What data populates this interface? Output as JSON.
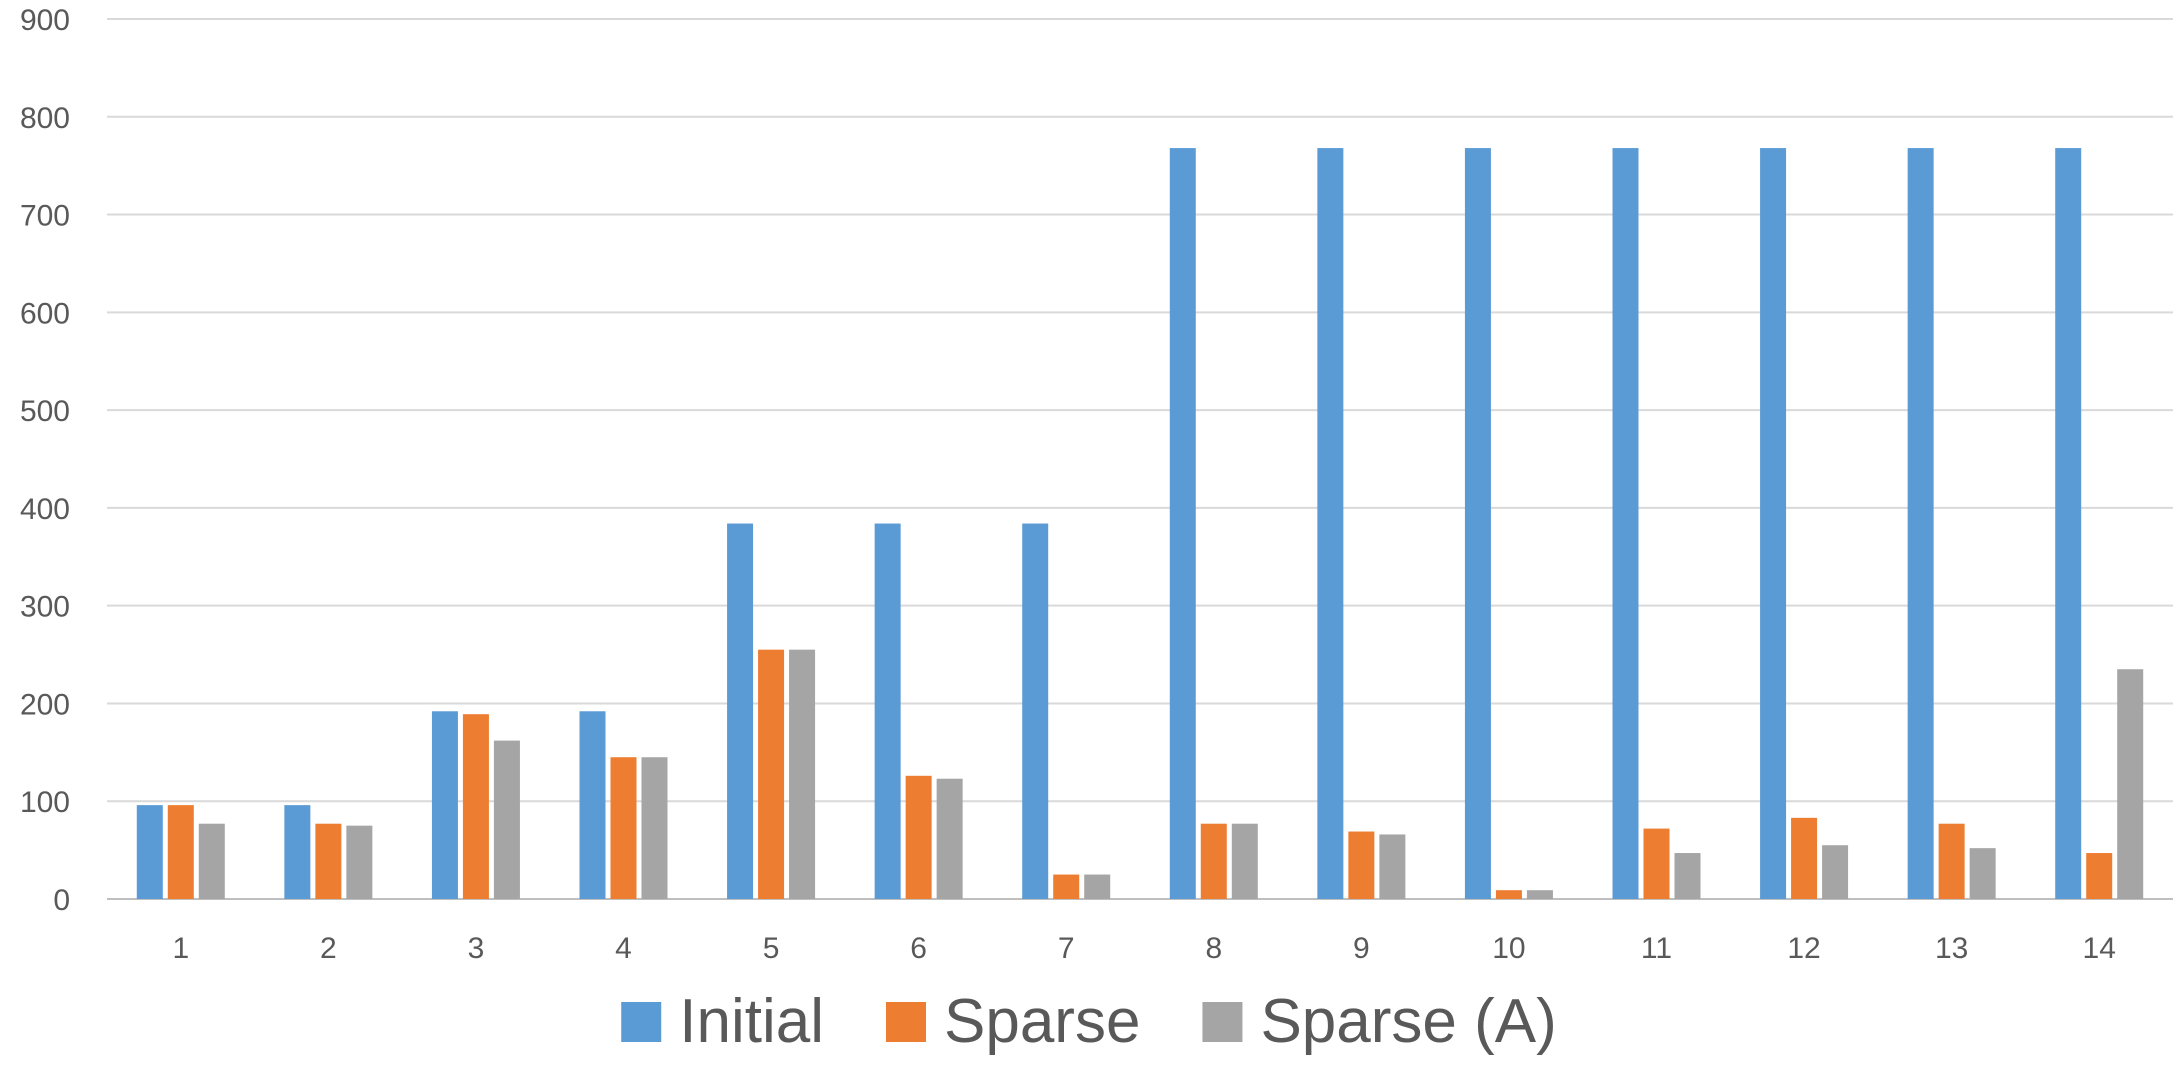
{
  "chart_data": {
    "type": "bar",
    "title": "",
    "xlabel": "",
    "ylabel": "",
    "categories": [
      "1",
      "2",
      "3",
      "4",
      "5",
      "6",
      "7",
      "8",
      "9",
      "10",
      "11",
      "12",
      "13",
      "14"
    ],
    "ylim": [
      0,
      900
    ],
    "yticks": [
      0,
      100,
      200,
      300,
      400,
      500,
      600,
      700,
      800,
      900
    ],
    "grid": true,
    "legend_position": "bottom",
    "series": [
      {
        "name": "Initial",
        "color": "#5B9BD5",
        "values": [
          96,
          96,
          192,
          192,
          384,
          384,
          384,
          768,
          768,
          768,
          768,
          768,
          768,
          768
        ]
      },
      {
        "name": "Sparse",
        "color": "#ED7D31",
        "values": [
          96,
          77,
          189,
          145,
          255,
          126,
          25,
          77,
          69,
          9,
          72,
          83,
          77,
          47
        ]
      },
      {
        "name": "Sparse (A)",
        "color": "#A5A5A5",
        "values": [
          77,
          75,
          162,
          145,
          255,
          123,
          25,
          77,
          66,
          9,
          47,
          55,
          52,
          235
        ]
      }
    ]
  }
}
